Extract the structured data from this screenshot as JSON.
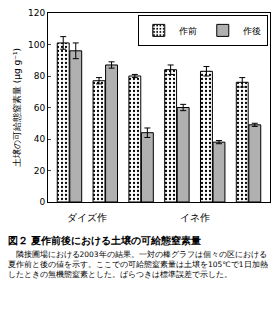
{
  "chart_data": {
    "type": "bar",
    "caption": "図２ 夏作前後における土壌の可給態窒素量",
    "note": "隣接圃場における2003年の結果。一対の棒グラフは個々の区における夏作前と後の値を示す。ここでの可給態窒素量は土壌を105℃で1日加熱したときの無機態窒素とした。ばらつきは標準誤差で示した。",
    "y_label": "土壌の可給態窒素量 (μg g⁻¹)",
    "categories": [
      null,
      null,
      null,
      null,
      null,
      null
    ],
    "groups": [
      {
        "label": "ダイズ作",
        "categories": [
          0,
          1
        ]
      },
      {
        "label": "イネ作",
        "categories": [
          2,
          3,
          4,
          5
        ]
      }
    ],
    "series": [
      {
        "name": "作前",
        "color": "#ffffff",
        "marker": "dots",
        "values": [
          101,
          77,
          80,
          84,
          83,
          76
        ],
        "errors": [
          4,
          2,
          1,
          3,
          3,
          3
        ]
      },
      {
        "name": "作後",
        "color": "#b0b0b0",
        "values": [
          96,
          87,
          44,
          60,
          38,
          49
        ],
        "errors": [
          5,
          2,
          3,
          2,
          1,
          1
        ]
      }
    ],
    "ylim": [
      0,
      120
    ],
    "yticks": [
      0,
      20,
      40,
      60,
      80,
      100,
      120
    ],
    "legend": "upper right",
    "grid": false
  }
}
